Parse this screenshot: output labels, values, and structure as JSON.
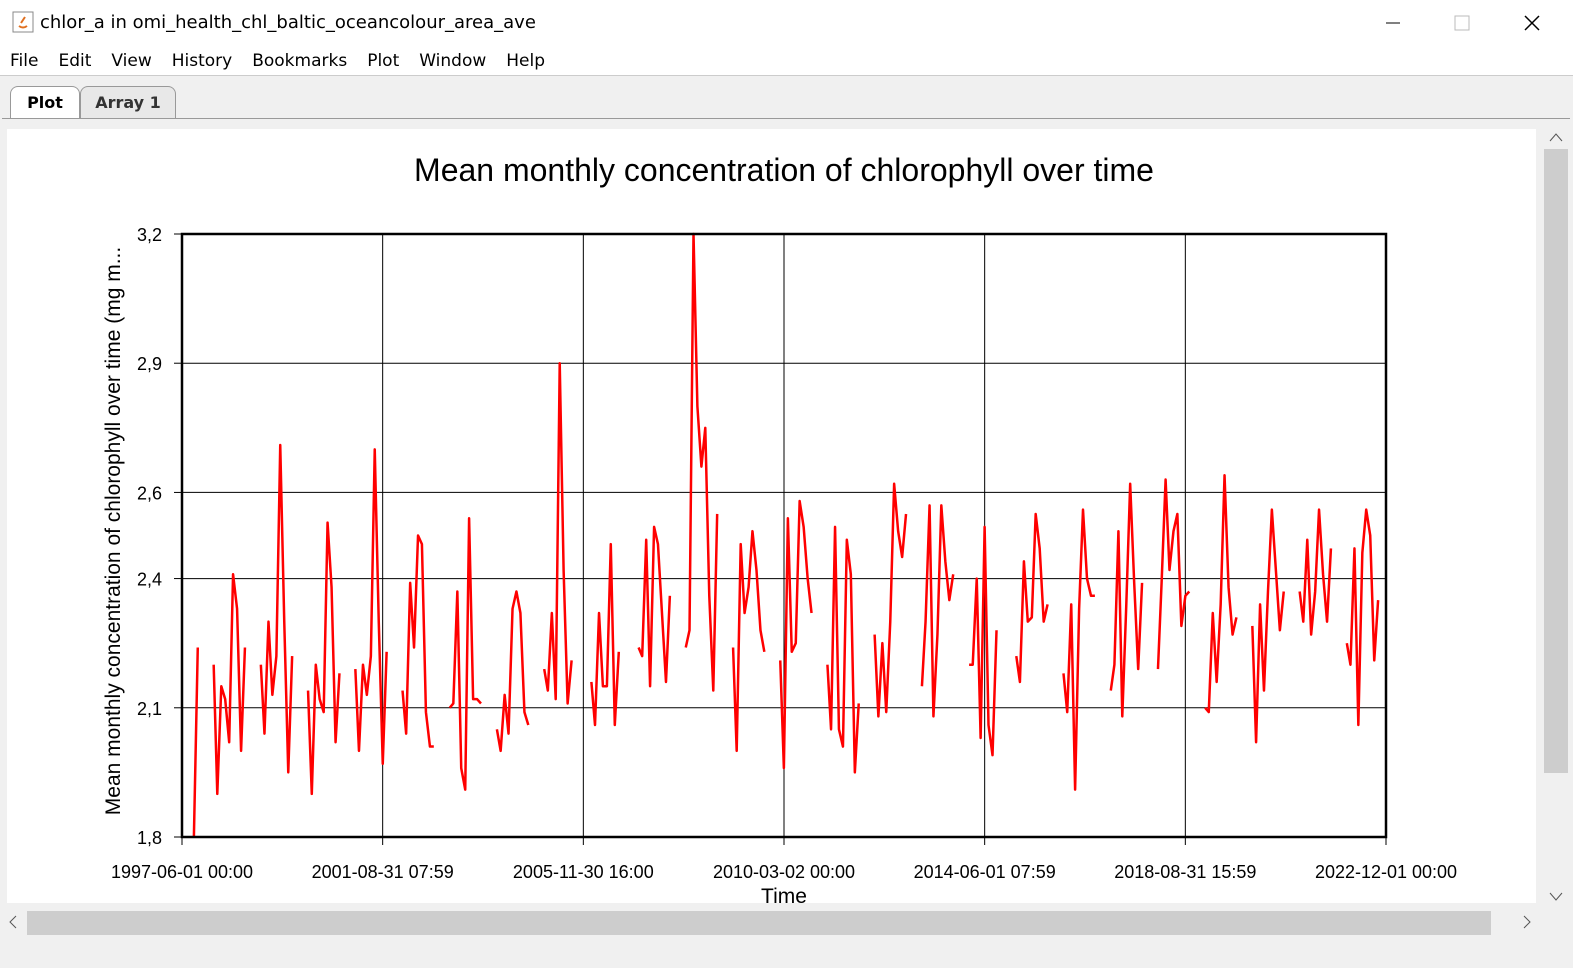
{
  "window": {
    "title": "chlor_a in omi_health_chl_baltic_oceancolour_area_ave"
  },
  "menu": [
    "File",
    "Edit",
    "View",
    "History",
    "Bookmarks",
    "Plot",
    "Window",
    "Help"
  ],
  "tabs": [
    "Plot",
    "Array 1"
  ],
  "chart_data": {
    "type": "line",
    "title": "Mean monthly concentration of chlorophyll over time",
    "x_label": "Time",
    "y_label": "Mean monthly concentration of chlorophyll over time (mg m...",
    "color": "#ff0000",
    "grid": true,
    "xlim": [
      "1997-06-01 00:00",
      "2022-12-01 00:00"
    ],
    "xticks": [
      "1997-06-01 00:00",
      "2001-08-31 07:59",
      "2005-11-30 16:00",
      "2010-03-02 00:00",
      "2014-06-01 07:59",
      "2018-08-31 15:59",
      "2022-12-01 00:00"
    ],
    "ylim": [
      1.8,
      3.2
    ],
    "yticks": [
      {
        "value": 1.8,
        "label": "1,8"
      },
      {
        "value": 2.1,
        "label": "2,1"
      },
      {
        "value": 2.4,
        "label": "2,4"
      },
      {
        "value": 2.6,
        "label": "2,6"
      },
      {
        "value": 2.9,
        "label": "2,9"
      },
      {
        "value": 3.2,
        "label": "3,2"
      }
    ],
    "x": [
      "1997-09-01",
      "1997-10-01",
      "1997-12-01",
      "1998-02-01",
      "1998-03-01",
      "1998-04-01",
      "1998-05-01",
      "1998-06-01",
      "1998-07-01",
      "1998-08-01",
      "1998-09-01",
      "1998-10-01",
      "1998-12-01",
      "1999-02-01",
      "1999-03-01",
      "1999-04-01",
      "1999-05-01",
      "1999-06-01",
      "1999-07-01",
      "1999-08-01",
      "1999-09-01",
      "1999-10-01",
      "1999-12-01",
      "2000-02-01",
      "2000-03-01",
      "2000-04-01",
      "2000-05-01",
      "2000-06-01",
      "2000-07-01",
      "2000-08-01",
      "2000-09-01",
      "2000-10-01",
      "2000-12-01",
      "2001-02-01",
      "2001-03-01",
      "2001-04-01",
      "2001-05-01",
      "2001-06-01",
      "2001-07-01",
      "2001-08-01",
      "2001-09-01",
      "2001-10-01",
      "2001-12-01",
      "2002-02-01",
      "2002-03-01",
      "2002-04-01",
      "2002-05-01",
      "2002-06-01",
      "2002-07-01",
      "2002-08-01",
      "2002-09-01",
      "2002-10-01",
      "2002-12-01",
      "2003-02-01",
      "2003-03-01",
      "2003-04-01",
      "2003-05-01",
      "2003-06-01",
      "2003-07-01",
      "2003-08-01",
      "2003-09-01",
      "2003-10-01",
      "2003-12-01",
      "2004-02-01",
      "2004-03-01",
      "2004-04-01",
      "2004-05-01",
      "2004-06-01",
      "2004-07-01",
      "2004-08-01",
      "2004-09-01",
      "2004-10-01",
      "2004-12-01",
      "2005-02-01",
      "2005-03-01",
      "2005-04-01",
      "2005-05-01",
      "2005-06-01",
      "2005-07-01",
      "2005-08-01",
      "2005-09-01",
      "2005-10-01",
      "2005-12-01",
      "2006-02-01",
      "2006-03-01",
      "2006-04-01",
      "2006-05-01",
      "2006-06-01",
      "2006-07-01",
      "2006-08-01",
      "2006-09-01",
      "2006-10-01",
      "2006-12-01",
      "2007-02-01",
      "2007-03-01",
      "2007-04-01",
      "2007-05-01",
      "2007-06-01",
      "2007-07-01",
      "2007-08-01",
      "2007-09-01",
      "2007-10-01",
      "2007-12-01",
      "2008-02-01",
      "2008-03-01",
      "2008-04-01",
      "2008-05-01",
      "2008-06-01",
      "2008-07-01",
      "2008-08-01",
      "2008-09-01",
      "2008-10-01",
      "2008-12-01",
      "2009-02-01",
      "2009-03-01",
      "2009-04-01",
      "2009-05-01",
      "2009-06-01",
      "2009-07-01",
      "2009-08-01",
      "2009-09-01",
      "2009-10-01",
      "2009-12-01",
      "2010-02-01",
      "2010-03-01",
      "2010-04-01",
      "2010-05-01",
      "2010-06-01",
      "2010-07-01",
      "2010-08-01",
      "2010-09-01",
      "2010-10-01",
      "2010-12-01",
      "2011-02-01",
      "2011-03-01",
      "2011-04-01",
      "2011-05-01",
      "2011-06-01",
      "2011-07-01",
      "2011-08-01",
      "2011-09-01",
      "2011-10-01",
      "2011-12-01",
      "2012-02-01",
      "2012-03-01",
      "2012-04-01",
      "2012-05-01",
      "2012-06-01",
      "2012-07-01",
      "2012-08-01",
      "2012-09-01",
      "2012-10-01",
      "2012-12-01",
      "2013-02-01",
      "2013-03-01",
      "2013-04-01",
      "2013-05-01",
      "2013-06-01",
      "2013-07-01",
      "2013-08-01",
      "2013-09-01",
      "2013-10-01",
      "2013-12-01",
      "2014-02-01",
      "2014-03-01",
      "2014-04-01",
      "2014-05-01",
      "2014-06-01",
      "2014-07-01",
      "2014-08-01",
      "2014-09-01",
      "2014-10-01",
      "2014-12-01",
      "2015-02-01",
      "2015-03-01",
      "2015-04-01",
      "2015-05-01",
      "2015-06-01",
      "2015-07-01",
      "2015-08-01",
      "2015-09-01",
      "2015-10-01",
      "2015-12-01",
      "2016-02-01",
      "2016-03-01",
      "2016-04-01",
      "2016-05-01",
      "2016-06-01",
      "2016-07-01",
      "2016-08-01",
      "2016-09-01",
      "2016-10-01",
      "2016-12-01",
      "2017-02-01",
      "2017-03-01",
      "2017-04-01",
      "2017-05-01",
      "2017-06-01",
      "2017-07-01",
      "2017-08-01",
      "2017-09-01",
      "2017-10-01",
      "2017-12-01",
      "2018-02-01",
      "2018-03-01",
      "2018-04-01",
      "2018-05-01",
      "2018-06-01",
      "2018-07-01",
      "2018-08-01",
      "2018-09-01",
      "2018-10-01",
      "2018-12-01",
      "2019-02-01",
      "2019-03-01",
      "2019-04-01",
      "2019-05-01",
      "2019-06-01",
      "2019-07-01",
      "2019-08-01",
      "2019-09-01",
      "2019-10-01",
      "2019-12-01",
      "2020-02-01",
      "2020-03-01",
      "2020-04-01",
      "2020-05-01",
      "2020-06-01",
      "2020-07-01",
      "2020-08-01",
      "2020-09-01",
      "2020-10-01",
      "2020-12-01",
      "2021-02-01",
      "2021-03-01",
      "2021-04-01",
      "2021-05-01",
      "2021-06-01",
      "2021-07-01",
      "2021-08-01",
      "2021-09-01",
      "2021-10-01",
      "2021-12-01",
      "2022-02-01",
      "2022-03-01",
      "2022-04-01",
      "2022-05-01",
      "2022-06-01",
      "2022-07-01",
      "2022-08-01",
      "2022-09-01",
      "2022-10-01"
    ],
    "values": [
      1.8,
      2.24,
      null,
      2.2,
      1.9,
      2.15,
      2.12,
      2.02,
      2.41,
      2.33,
      2.0,
      2.24,
      null,
      2.2,
      2.04,
      2.3,
      2.13,
      2.22,
      2.71,
      2.3,
      1.95,
      2.22,
      null,
      2.14,
      1.9,
      2.2,
      2.12,
      2.09,
      2.53,
      2.38,
      2.02,
      2.18,
      null,
      2.19,
      2.0,
      2.2,
      2.13,
      2.22,
      2.7,
      2.3,
      1.97,
      2.23,
      null,
      2.14,
      2.04,
      2.39,
      2.24,
      2.5,
      2.48,
      2.09,
      2.01,
      2.01,
      null,
      2.1,
      2.11,
      2.37,
      1.96,
      1.91,
      2.54,
      2.12,
      2.12,
      2.11,
      null,
      2.05,
      2.0,
      2.13,
      2.04,
      2.33,
      2.37,
      2.32,
      2.09,
      2.06,
      null,
      2.19,
      2.14,
      2.32,
      2.12,
      2.9,
      2.42,
      2.11,
      2.21,
      null,
      null,
      2.16,
      2.06,
      2.32,
      2.15,
      2.15,
      2.48,
      2.06,
      2.23,
      null,
      null,
      2.24,
      2.22,
      2.49,
      2.15,
      2.52,
      2.48,
      2.32,
      2.16,
      2.36,
      null,
      2.24,
      2.28,
      3.2,
      2.8,
      2.66,
      2.75,
      2.36,
      2.14,
      2.55,
      null,
      2.24,
      2.0,
      2.48,
      2.32,
      2.38,
      2.51,
      2.42,
      2.28,
      2.23,
      null,
      2.21,
      1.96,
      2.54,
      2.23,
      2.25,
      2.58,
      2.52,
      2.4,
      2.32,
      null,
      2.2,
      2.05,
      2.52,
      2.05,
      2.01,
      2.49,
      2.41,
      1.95,
      2.11,
      null,
      2.27,
      2.08,
      2.25,
      2.09,
      2.3,
      2.62,
      2.51,
      2.45,
      2.55,
      null,
      2.15,
      2.3,
      2.57,
      2.08,
      2.27,
      2.57,
      2.44,
      2.35,
      2.41,
      null,
      2.2,
      2.2,
      2.4,
      2.03,
      2.52,
      2.06,
      1.99,
      2.28,
      null,
      null,
      2.22,
      2.16,
      2.44,
      2.3,
      2.31,
      2.55,
      2.47,
      2.3,
      2.34,
      null,
      2.18,
      2.09,
      2.34,
      1.91,
      2.33,
      2.56,
      2.4,
      2.36,
      2.36,
      null,
      2.14,
      2.2,
      2.51,
      2.08,
      2.34,
      2.62,
      2.39,
      2.19,
      2.39,
      null,
      2.19,
      2.39,
      2.63,
      2.42,
      2.51,
      2.55,
      2.29,
      2.36,
      2.37,
      null,
      2.1,
      2.09,
      2.32,
      2.16,
      2.34,
      2.64,
      2.38,
      2.27,
      2.31,
      null,
      2.29,
      2.02,
      2.34,
      2.14,
      2.37,
      2.56,
      2.42,
      2.28,
      2.37,
      null,
      2.37,
      2.3,
      2.49,
      2.27,
      2.37,
      2.56,
      2.41,
      2.3,
      2.47,
      null,
      2.25,
      2.2,
      2.47,
      2.06,
      2.46,
      2.56,
      2.5,
      2.21,
      2.35
    ]
  }
}
